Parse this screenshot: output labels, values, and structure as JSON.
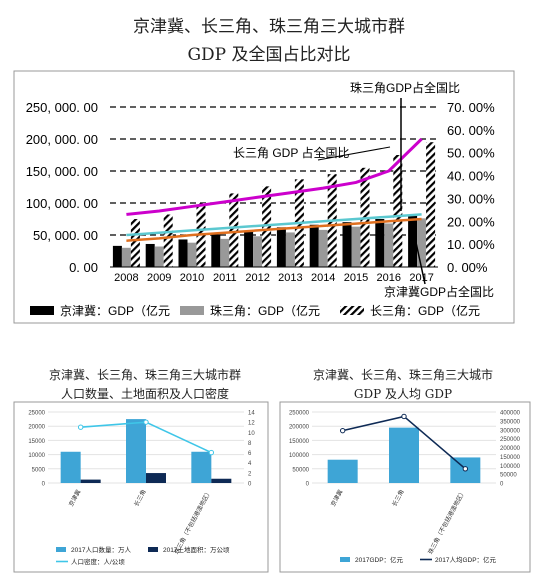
{
  "titles": {
    "main_line1": "京津冀、长三角、珠三角三大城市群",
    "main_line2": "GDP 及全国占比对比",
    "chart2_line1": "京津冀、长三角、珠三角三大城市群",
    "chart2_line2": "人口数量、土地面积及人口密度",
    "chart3_line1": "京津冀、长三角、珠三角三大城市",
    "chart3_line2": "GDP 及人均 GDP"
  },
  "chart_data": [
    {
      "type": "bar",
      "categories": [
        "2008",
        "2009",
        "2010",
        "2011",
        "2012",
        "2013",
        "2014",
        "2015",
        "2016",
        "2017"
      ],
      "series": [
        {
          "name": "京津冀：GDP（亿元",
          "kind": "bar",
          "color": "#000000",
          "values": [
            33000,
            36000,
            43000,
            51000,
            57000,
            62000,
            66000,
            70000,
            75000,
            80000
          ]
        },
        {
          "name": "珠三角：GDP（亿元",
          "kind": "bar",
          "color": "#999999",
          "values": [
            30000,
            32000,
            38000,
            44000,
            48000,
            54000,
            58000,
            63000,
            68000,
            76000
          ]
        },
        {
          "name": "长三角：GDP（亿元",
          "kind": "bar",
          "pattern": "hatch",
          "values": [
            75000,
            82000,
            100000,
            115000,
            126000,
            137000,
            145000,
            155000,
            175000,
            195000
          ]
        }
      ],
      "lines": [
        {
          "label": "长三角 GDP 占全国比",
          "color": "#cc00cc",
          "values": [
            0.23,
            0.245,
            0.265,
            0.285,
            0.305,
            0.325,
            0.345,
            0.37,
            0.42,
            0.56
          ]
        },
        {
          "label": "珠三角GDP占全国比",
          "color": "#5bc8d0",
          "values": [
            0.14,
            0.15,
            0.16,
            0.17,
            0.18,
            0.19,
            0.2,
            0.21,
            0.22,
            0.23
          ]
        },
        {
          "label": "京津冀GDP占全国比",
          "color": "#e07020",
          "values": [
            0.115,
            0.125,
            0.14,
            0.15,
            0.16,
            0.17,
            0.18,
            0.19,
            0.2,
            0.21
          ]
        }
      ],
      "ylim": [
        0,
        250000
      ],
      "yticks": [
        "250, 000. 00",
        "200, 000. 00",
        "150, 000. 00",
        "100, 000. 00",
        "50, 000. 00",
        "0. 00"
      ],
      "y2lim": [
        0,
        0.7
      ],
      "y2ticks": [
        "70. 00%",
        "60. 00%",
        "50. 00%",
        "40. 00%",
        "30. 00%",
        "20. 00%",
        "10. 00%",
        "0. 00%"
      ],
      "grid": "dashed",
      "legend": "bottom"
    },
    {
      "type": "bar",
      "categories": [
        "京津冀",
        "长三角",
        "珠三角（不包括港澳地区）"
      ],
      "series": [
        {
          "name": "2017人口数量：万人",
          "kind": "bar",
          "color": "#3ea5d6",
          "values": [
            11000,
            22500,
            11000
          ]
        },
        {
          "name": "2017土地面积：万公顷",
          "kind": "bar",
          "color": "#0e2a55",
          "values": [
            1200,
            3500,
            1500
          ]
        },
        {
          "name": "人口密度：人/公顷",
          "kind": "line",
          "color": "#3fc6e8",
          "values": [
            11,
            12,
            6
          ]
        }
      ],
      "ylim": [
        0,
        25000
      ],
      "yticks": [
        "25000",
        "20000",
        "15000",
        "10000",
        "5000",
        "0"
      ],
      "y2lim": [
        0,
        14
      ],
      "y2ticks": [
        "14",
        "12",
        "10",
        "8",
        "6",
        "4",
        "2",
        "0"
      ],
      "legend": "bottom"
    },
    {
      "type": "bar",
      "categories": [
        "京津冀",
        "长三角",
        "珠三角（不包括港澳地区）"
      ],
      "series": [
        {
          "name": "2017GDP：亿元",
          "kind": "bar",
          "color": "#3ea5d6",
          "values": [
            82000,
            195000,
            90000
          ]
        },
        {
          "name": "2017人均GDP：亿元",
          "kind": "line",
          "color": "#0e2a55",
          "values": [
            295000,
            375000,
            80000
          ]
        }
      ],
      "ylim": [
        0,
        250000
      ],
      "yticks": [
        "250000",
        "200000",
        "150000",
        "100000",
        "50000",
        "0"
      ],
      "y2lim": [
        0,
        400000
      ],
      "y2ticks": [
        "400000",
        "350000",
        "300000",
        "250000",
        "200000",
        "150000",
        "100000",
        "50000",
        "0"
      ],
      "legend": "bottom"
    }
  ]
}
